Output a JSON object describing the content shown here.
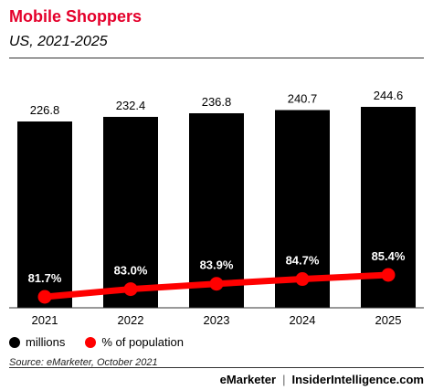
{
  "header": {
    "title": "Mobile Shoppers",
    "subtitle": "US, 2021-2025"
  },
  "legend": {
    "bars_label": "millions",
    "line_label": "% of population"
  },
  "source": "Source: eMarketer, October 2021",
  "footer": {
    "brand_left": "eMarketer",
    "separator": "|",
    "brand_right": "InsiderIntelligence.com"
  },
  "colors": {
    "bar": "#000000",
    "line": "#ff0000",
    "title": "#e4002b"
  },
  "chart_data": {
    "type": "bar",
    "categories": [
      "2021",
      "2022",
      "2023",
      "2024",
      "2025"
    ],
    "series": [
      {
        "name": "millions",
        "type": "bar",
        "values": [
          226.8,
          232.4,
          236.8,
          240.7,
          244.6
        ],
        "labels": [
          "226.8",
          "232.4",
          "236.8",
          "240.7",
          "244.6"
        ]
      },
      {
        "name": "% of population",
        "type": "line",
        "values": [
          81.7,
          83.0,
          83.9,
          84.7,
          85.4
        ],
        "labels": [
          "81.7%",
          "83.0%",
          "83.9%",
          "84.7%",
          "85.4%"
        ]
      }
    ],
    "legend_position": "bottom-left",
    "grid": false
  }
}
